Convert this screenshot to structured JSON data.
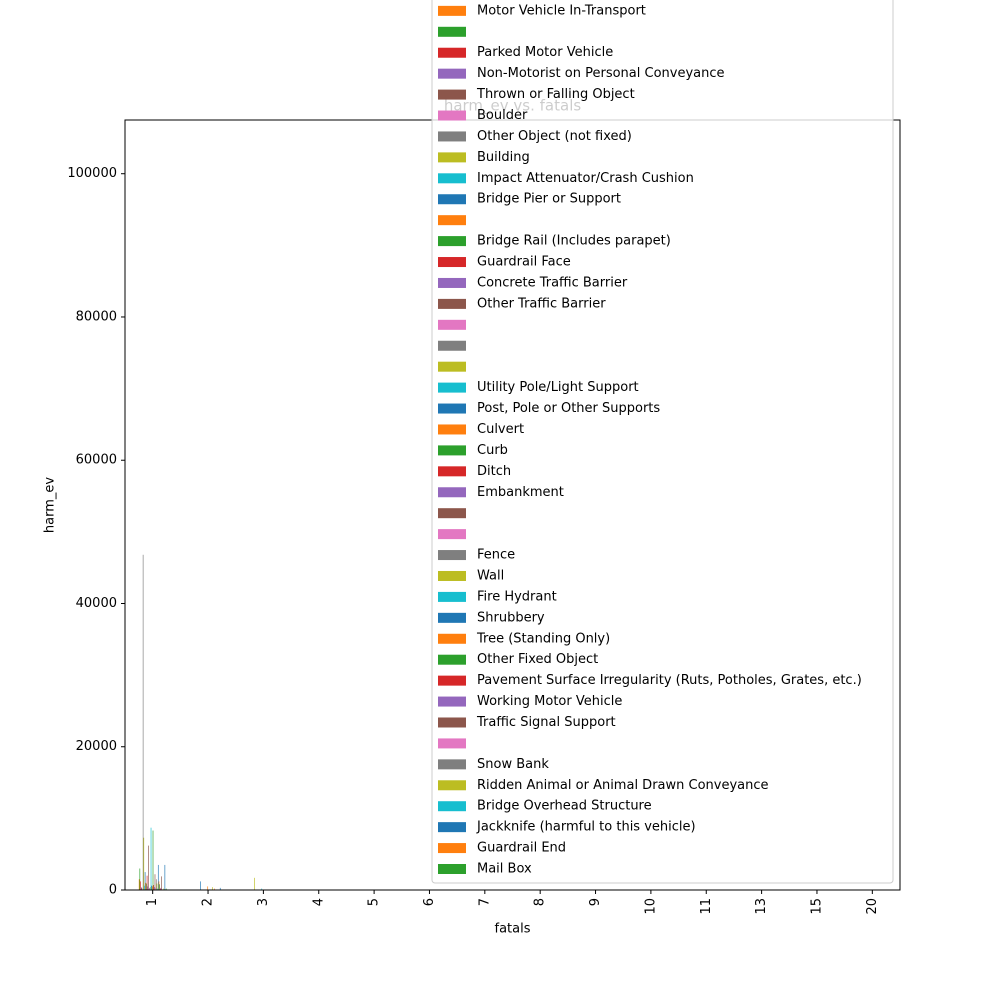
{
  "chart_data": {
    "type": "bar",
    "title": "harm_ev vs. fatals",
    "x_label": "fatals",
    "y_label": "harm_ev",
    "categories": [
      "1",
      "2",
      "3",
      "4",
      "5",
      "6",
      "7",
      "8",
      "9",
      "10",
      "11",
      "13",
      "15",
      "20"
    ],
    "ylim": [
      0,
      107500
    ],
    "yticks": [
      0,
      20000,
      40000,
      60000,
      80000,
      100000
    ],
    "series": [
      {
        "name": "Motor Vehicle In-Transport",
        "color": "#ff7f0e",
        "values": [
          1500,
          0,
          0,
          0,
          0,
          0,
          0,
          0,
          0,
          0,
          0,
          0,
          0,
          0
        ]
      },
      {
        "name": null,
        "color": "#2ca02c",
        "values": [
          3000,
          0,
          0,
          0,
          0,
          0,
          0,
          0,
          0,
          0,
          0,
          0,
          0,
          0
        ]
      },
      {
        "name": "Parked Motor Vehicle",
        "color": "#d62728",
        "values": [
          1200,
          0,
          0,
          0,
          0,
          0,
          0,
          0,
          0,
          0,
          0,
          0,
          0,
          0
        ]
      },
      {
        "name": "Non-Motorist on Personal Conveyance",
        "color": "#9467bd",
        "values": [
          400,
          0,
          0,
          0,
          0,
          0,
          0,
          0,
          0,
          0,
          0,
          0,
          0,
          0
        ]
      },
      {
        "name": "Thrown or Falling Object",
        "color": "#8c564b",
        "values": [
          300,
          0,
          0,
          0,
          0,
          0,
          0,
          0,
          0,
          0,
          0,
          0,
          0,
          0
        ]
      },
      {
        "name": "Boulder",
        "color": "#e377c2",
        "values": [
          100,
          0,
          0,
          0,
          0,
          0,
          0,
          0,
          0,
          0,
          0,
          0,
          0,
          0
        ]
      },
      {
        "name": "Other Object (not fixed)",
        "color": "#7f7f7f",
        "values": [
          46800,
          0,
          0,
          0,
          0,
          0,
          0,
          0,
          0,
          0,
          0,
          0,
          0,
          0
        ]
      },
      {
        "name": "Building",
        "color": "#bcbd22",
        "values": [
          7300,
          0,
          1700,
          0,
          0,
          0,
          0,
          0,
          0,
          0,
          0,
          0,
          0,
          0
        ]
      },
      {
        "name": "Impact Attenuator/Crash Cushion",
        "color": "#17becf",
        "values": [
          600,
          0,
          0,
          0,
          0,
          0,
          0,
          0,
          0,
          0,
          0,
          0,
          0,
          0
        ]
      },
      {
        "name": "Bridge Pier or Support",
        "color": "#1f77b4",
        "values": [
          2500,
          1200,
          0,
          0,
          0,
          0,
          0,
          0,
          0,
          0,
          0,
          0,
          0,
          0
        ]
      },
      {
        "name": null,
        "color": "#ff7f0e",
        "values": [
          1000,
          0,
          0,
          0,
          0,
          0,
          0,
          0,
          0,
          0,
          0,
          0,
          0,
          0
        ]
      },
      {
        "name": "Bridge Rail (Includes parapet)",
        "color": "#2ca02c",
        "values": [
          900,
          0,
          0,
          0,
          0,
          0,
          0,
          0,
          0,
          0,
          0,
          0,
          0,
          0
        ]
      },
      {
        "name": "Guardrail Face",
        "color": "#d62728",
        "values": [
          2000,
          0,
          0,
          0,
          0,
          0,
          0,
          0,
          0,
          0,
          0,
          0,
          0,
          0
        ]
      },
      {
        "name": "Concrete Traffic Barrier",
        "color": "#9467bd",
        "values": [
          500,
          0,
          0,
          0,
          0,
          0,
          0,
          0,
          0,
          0,
          0,
          0,
          0,
          0
        ]
      },
      {
        "name": "Other Traffic Barrier",
        "color": "#8c564b",
        "values": [
          6200,
          0,
          0,
          0,
          0,
          0,
          0,
          0,
          0,
          0,
          0,
          0,
          0,
          0
        ]
      },
      {
        "name": null,
        "color": "#e377c2",
        "values": [
          200,
          0,
          0,
          0,
          0,
          0,
          0,
          0,
          0,
          0,
          0,
          0,
          0,
          0
        ]
      },
      {
        "name": null,
        "color": "#7f7f7f",
        "values": [
          300,
          0,
          0,
          0,
          0,
          0,
          0,
          0,
          0,
          0,
          0,
          0,
          0,
          0
        ]
      },
      {
        "name": null,
        "color": "#bcbd22",
        "values": [
          400,
          0,
          0,
          0,
          0,
          0,
          0,
          0,
          0,
          0,
          0,
          0,
          0,
          0
        ]
      },
      {
        "name": "Utility Pole/Light Support",
        "color": "#17becf",
        "values": [
          8700,
          0,
          200,
          0,
          0,
          0,
          0,
          0,
          0,
          0,
          0,
          0,
          0,
          0
        ]
      },
      {
        "name": "Post, Pole or Other Supports",
        "color": "#1f77b4",
        "values": [
          600,
          0,
          0,
          0,
          0,
          0,
          0,
          0,
          0,
          0,
          0,
          0,
          0,
          0
        ]
      },
      {
        "name": "Culvert",
        "color": "#ff7f0e",
        "values": [
          500,
          500,
          0,
          0,
          0,
          0,
          0,
          0,
          0,
          0,
          0,
          0,
          0,
          0
        ]
      },
      {
        "name": "Curb",
        "color": "#2ca02c",
        "values": [
          8300,
          0,
          0,
          0,
          0,
          0,
          0,
          0,
          0,
          0,
          0,
          0,
          0,
          0
        ]
      },
      {
        "name": "Ditch",
        "color": "#d62728",
        "values": [
          700,
          0,
          0,
          0,
          0,
          0,
          0,
          0,
          0,
          0,
          0,
          0,
          0,
          0
        ]
      },
      {
        "name": "Embankment",
        "color": "#9467bd",
        "values": [
          400,
          0,
          0,
          0,
          0,
          0,
          0,
          0,
          0,
          0,
          0,
          0,
          0,
          0
        ]
      },
      {
        "name": null,
        "color": "#8c564b",
        "values": [
          2200,
          0,
          0,
          0,
          0,
          0,
          0,
          0,
          0,
          0,
          0,
          0,
          0,
          0
        ]
      },
      {
        "name": null,
        "color": "#e377c2",
        "values": [
          300,
          0,
          0,
          0,
          0,
          0,
          0,
          0,
          0,
          0,
          0,
          0,
          0,
          0
        ]
      },
      {
        "name": "Fence",
        "color": "#7f7f7f",
        "values": [
          1500,
          0,
          0,
          0,
          0,
          0,
          0,
          0,
          0,
          0,
          0,
          0,
          0,
          0
        ]
      },
      {
        "name": "Wall",
        "color": "#bcbd22",
        "values": [
          900,
          400,
          0,
          0,
          0,
          0,
          0,
          0,
          0,
          0,
          0,
          0,
          0,
          0
        ]
      },
      {
        "name": "Fire Hydrant",
        "color": "#17becf",
        "values": [
          200,
          0,
          0,
          0,
          0,
          0,
          0,
          0,
          0,
          0,
          0,
          0,
          0,
          0
        ]
      },
      {
        "name": "Shrubbery",
        "color": "#1f77b4",
        "values": [
          3500,
          0,
          0,
          0,
          0,
          0,
          0,
          0,
          0,
          0,
          0,
          0,
          0,
          0
        ]
      },
      {
        "name": "Tree (Standing Only)",
        "color": "#ff7f0e",
        "values": [
          1200,
          200,
          0,
          0,
          0,
          0,
          0,
          0,
          0,
          0,
          0,
          0,
          0,
          0
        ]
      },
      {
        "name": "Other Fixed Object",
        "color": "#2ca02c",
        "values": [
          800,
          0,
          0,
          0,
          0,
          0,
          0,
          0,
          0,
          0,
          0,
          0,
          0,
          0
        ]
      },
      {
        "name": "Pavement Surface Irregularity (Ruts, Potholes, Grates, etc.)",
        "color": "#d62728",
        "values": [
          200,
          0,
          0,
          0,
          0,
          0,
          0,
          0,
          0,
          0,
          0,
          0,
          0,
          0
        ]
      },
      {
        "name": "Working Motor Vehicle",
        "color": "#9467bd",
        "values": [
          300,
          0,
          0,
          0,
          0,
          0,
          0,
          0,
          0,
          0,
          0,
          0,
          0,
          0
        ]
      },
      {
        "name": "Traffic Signal Support",
        "color": "#8c564b",
        "values": [
          1900,
          0,
          0,
          0,
          0,
          0,
          0,
          0,
          0,
          0,
          0,
          0,
          0,
          0
        ]
      },
      {
        "name": null,
        "color": "#e377c2",
        "values": [
          100,
          0,
          0,
          0,
          0,
          0,
          0,
          0,
          0,
          0,
          0,
          0,
          0,
          0
        ]
      },
      {
        "name": "Snow Bank",
        "color": "#7f7f7f",
        "values": [
          50,
          0,
          0,
          0,
          0,
          0,
          0,
          0,
          0,
          0,
          0,
          0,
          0,
          0
        ]
      },
      {
        "name": "Ridden Animal or Animal Drawn Conveyance",
        "color": "#bcbd22",
        "values": [
          200,
          0,
          0,
          0,
          0,
          0,
          0,
          0,
          0,
          0,
          0,
          0,
          0,
          0
        ]
      },
      {
        "name": "Bridge Overhead Structure",
        "color": "#17becf",
        "values": [
          100,
          0,
          0,
          0,
          0,
          0,
          0,
          0,
          0,
          0,
          0,
          0,
          0,
          0
        ]
      },
      {
        "name": "Jackknife (harmful to this vehicle)",
        "color": "#1f77b4",
        "values": [
          3500,
          300,
          0,
          0,
          0,
          0,
          0,
          0,
          0,
          0,
          0,
          0,
          0,
          0
        ]
      },
      {
        "name": "Guardrail End",
        "color": "#ff7f0e",
        "values": [
          100,
          0,
          0,
          0,
          0,
          0,
          0,
          0,
          0,
          0,
          0,
          0,
          0,
          0
        ]
      },
      {
        "name": "Mail Box",
        "color": "#2ca02c",
        "values": [
          200,
          0,
          0,
          0,
          0,
          0,
          0,
          0,
          0,
          0,
          0,
          0,
          0,
          0
        ]
      }
    ]
  }
}
